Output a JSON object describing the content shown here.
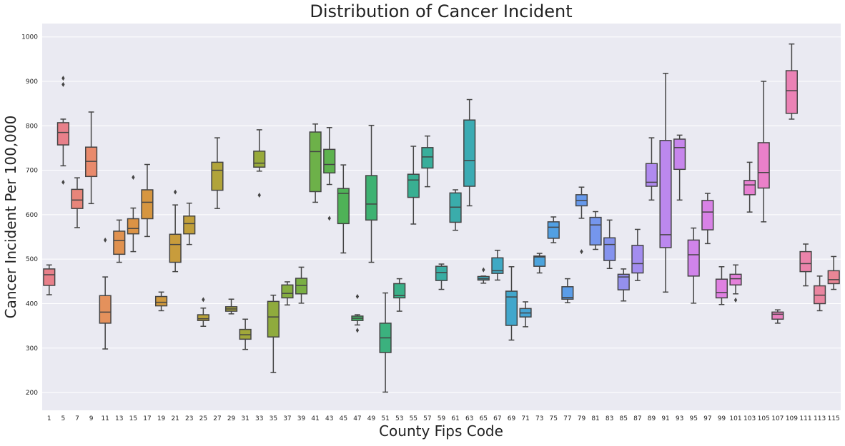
{
  "chart_data": {
    "type": "box",
    "title": "Distribution of Cancer Incident",
    "xlabel": "County Fips Code",
    "ylabel": "Cancer Incident Per 100,000",
    "ylim": [
      160,
      1030
    ],
    "yticks": [
      200,
      300,
      400,
      500,
      600,
      700,
      800,
      900,
      1000
    ],
    "grid": true,
    "categories": [
      "1",
      "5",
      "7",
      "9",
      "11",
      "13",
      "15",
      "17",
      "19",
      "21",
      "23",
      "25",
      "27",
      "29",
      "31",
      "33",
      "35",
      "37",
      "39",
      "41",
      "43",
      "45",
      "47",
      "49",
      "51",
      "53",
      "55",
      "57",
      "59",
      "61",
      "63",
      "65",
      "67",
      "69",
      "71",
      "73",
      "75",
      "77",
      "79",
      "81",
      "83",
      "85",
      "87",
      "89",
      "91",
      "93",
      "95",
      "97",
      "99",
      "101",
      "103",
      "105",
      "107",
      "109",
      "111",
      "113",
      "115"
    ],
    "boxes": [
      {
        "q1": 441,
        "median": 465,
        "q3": 478,
        "whisker_low": 420,
        "whisker_high": 487,
        "outliers": [],
        "color": "#e8808a"
      },
      {
        "q1": 757,
        "median": 785,
        "q3": 807,
        "whisker_low": 710,
        "whisker_high": 815,
        "outliers": [
          907,
          893,
          673
        ],
        "color": "#e8808a"
      },
      {
        "q1": 614,
        "median": 633,
        "q3": 657,
        "whisker_low": 571,
        "whisker_high": 683,
        "outliers": [],
        "color": "#e8857a"
      },
      {
        "q1": 686,
        "median": 720,
        "q3": 752,
        "whisker_low": 625,
        "whisker_high": 831,
        "outliers": [],
        "color": "#e98a6c"
      },
      {
        "q1": 356,
        "median": 381,
        "q3": 418,
        "whisker_low": 298,
        "whisker_high": 460,
        "outliers": [
          543
        ],
        "color": "#e4915c"
      },
      {
        "q1": 511,
        "median": 542,
        "q3": 563,
        "whisker_low": 493,
        "whisker_high": 588,
        "outliers": [],
        "color": "#e0914f"
      },
      {
        "q1": 557,
        "median": 569,
        "q3": 591,
        "whisker_low": 517,
        "whisker_high": 615,
        "outliers": [
          684
        ],
        "color": "#dc9345"
      },
      {
        "q1": 591,
        "median": 628,
        "q3": 656,
        "whisker_low": 551,
        "whisker_high": 713,
        "outliers": [],
        "color": "#d69640"
      },
      {
        "q1": 395,
        "median": 403,
        "q3": 416,
        "whisker_low": 384,
        "whisker_high": 426,
        "outliers": [],
        "color": "#cf993e"
      },
      {
        "q1": 493,
        "median": 533,
        "q3": 556,
        "whisker_low": 472,
        "whisker_high": 622,
        "outliers": [
          651
        ],
        "color": "#c89c3c"
      },
      {
        "q1": 557,
        "median": 580,
        "q3": 597,
        "whisker_low": 533,
        "whisker_high": 626,
        "outliers": [],
        "color": "#c19f3a"
      },
      {
        "q1": 362,
        "median": 366,
        "q3": 375,
        "whisker_low": 349,
        "whisker_high": 390,
        "outliers": [
          409
        ],
        "color": "#b9a23a"
      },
      {
        "q1": 655,
        "median": 700,
        "q3": 718,
        "whisker_low": 614,
        "whisker_high": 773,
        "outliers": [],
        "color": "#b1a43a"
      },
      {
        "q1": 383,
        "median": 388,
        "q3": 393,
        "whisker_low": 377,
        "whisker_high": 410,
        "outliers": [],
        "color": "#aaa63a"
      },
      {
        "q1": 320,
        "median": 330,
        "q3": 342,
        "whisker_low": 297,
        "whisker_high": 365,
        "outliers": [],
        "color": "#a1a83a"
      },
      {
        "q1": 707,
        "median": 716,
        "q3": 743,
        "whisker_low": 698,
        "whisker_high": 791,
        "outliers": [
          644
        ],
        "color": "#98aa3b"
      },
      {
        "q1": 325,
        "median": 370,
        "q3": 405,
        "whisker_low": 245,
        "whisker_high": 419,
        "outliers": [],
        "color": "#8fab3d"
      },
      {
        "q1": 413,
        "median": 423,
        "q3": 442,
        "whisker_low": 397,
        "whisker_high": 449,
        "outliers": [],
        "color": "#85ad40"
      },
      {
        "q1": 422,
        "median": 441,
        "q3": 457,
        "whisker_low": 401,
        "whisker_high": 482,
        "outliers": [],
        "color": "#7aaf44"
      },
      {
        "q1": 652,
        "median": 742,
        "q3": 786,
        "whisker_low": 628,
        "whisker_high": 804,
        "outliers": [],
        "color": "#6db149"
      },
      {
        "q1": 694,
        "median": 713,
        "q3": 747,
        "whisker_low": 668,
        "whisker_high": 796,
        "outliers": [
          592
        ],
        "color": "#5db24e"
      },
      {
        "q1": 580,
        "median": 648,
        "q3": 659,
        "whisker_low": 514,
        "whisker_high": 712,
        "outliers": [],
        "color": "#4fb257"
      },
      {
        "q1": 362,
        "median": 367,
        "q3": 372,
        "whisker_low": 352,
        "whisker_high": 375,
        "outliers": [
          416,
          340
        ],
        "color": "#43b265"
      },
      {
        "q1": 588,
        "median": 624,
        "q3": 688,
        "whisker_low": 493,
        "whisker_high": 801,
        "outliers": [],
        "color": "#3eb272"
      },
      {
        "q1": 290,
        "median": 323,
        "q3": 356,
        "whisker_low": 201,
        "whisker_high": 424,
        "outliers": [],
        "color": "#3bb17e"
      },
      {
        "q1": 413,
        "median": 418,
        "q3": 445,
        "whisker_low": 383,
        "whisker_high": 456,
        "outliers": [],
        "color": "#3ab088"
      },
      {
        "q1": 639,
        "median": 678,
        "q3": 691,
        "whisker_low": 579,
        "whisker_high": 754,
        "outliers": [],
        "color": "#39af92"
      },
      {
        "q1": 705,
        "median": 730,
        "q3": 751,
        "whisker_low": 663,
        "whisker_high": 777,
        "outliers": [],
        "color": "#38ae9b"
      },
      {
        "q1": 452,
        "median": 470,
        "q3": 484,
        "whisker_low": 432,
        "whisker_high": 489,
        "outliers": [],
        "color": "#39ada3"
      },
      {
        "q1": 583,
        "median": 617,
        "q3": 649,
        "whisker_low": 565,
        "whisker_high": 656,
        "outliers": [],
        "color": "#3aacab"
      },
      {
        "q1": 664,
        "median": 722,
        "q3": 813,
        "whisker_low": 620,
        "whisker_high": 859,
        "outliers": [],
        "color": "#3babb3"
      },
      {
        "q1": 453,
        "median": 456,
        "q3": 461,
        "whisker_low": 446,
        "whisker_high": 462,
        "outliers": [
          476
        ],
        "color": "#3daabb"
      },
      {
        "q1": 468,
        "median": 474,
        "q3": 503,
        "whisker_low": 453,
        "whisker_high": 520,
        "outliers": [],
        "color": "#3fa9c4"
      },
      {
        "q1": 351,
        "median": 415,
        "q3": 428,
        "whisker_low": 318,
        "whisker_high": 483,
        "outliers": [],
        "color": "#42a7cc"
      },
      {
        "q1": 370,
        "median": 379,
        "q3": 389,
        "whisker_low": 348,
        "whisker_high": 404,
        "outliers": [],
        "color": "#46a5d4"
      },
      {
        "q1": 484,
        "median": 505,
        "q3": 507,
        "whisker_low": 469,
        "whisker_high": 513,
        "outliers": [],
        "color": "#4ba3dc"
      },
      {
        "q1": 547,
        "median": 572,
        "q3": 584,
        "whisker_low": 537,
        "whisker_high": 595,
        "outliers": [],
        "color": "#52a0e3"
      },
      {
        "q1": 410,
        "median": 414,
        "q3": 438,
        "whisker_low": 402,
        "whisker_high": 456,
        "outliers": [],
        "color": "#5b9de8"
      },
      {
        "q1": 620,
        "median": 632,
        "q3": 645,
        "whisker_low": 592,
        "whisker_high": 662,
        "outliers": [
          517
        ],
        "color": "#6699ec"
      },
      {
        "q1": 532,
        "median": 577,
        "q3": 594,
        "whisker_low": 522,
        "whisker_high": 607,
        "outliers": [],
        "color": "#7596ed"
      },
      {
        "q1": 497,
        "median": 533,
        "q3": 548,
        "whisker_low": 479,
        "whisker_high": 588,
        "outliers": [],
        "color": "#8593ee"
      },
      {
        "q1": 431,
        "median": 460,
        "q3": 466,
        "whisker_low": 406,
        "whisker_high": 478,
        "outliers": [],
        "color": "#9490ee"
      },
      {
        "q1": 469,
        "median": 490,
        "q3": 531,
        "whisker_low": 452,
        "whisker_high": 567,
        "outliers": [],
        "color": "#a38def"
      },
      {
        "q1": 664,
        "median": 673,
        "q3": 715,
        "whisker_low": 633,
        "whisker_high": 773,
        "outliers": [],
        "color": "#b08aef"
      },
      {
        "q1": 526,
        "median": 555,
        "q3": 767,
        "whisker_low": 426,
        "whisker_high": 918,
        "outliers": [],
        "color": "#bc88ee"
      },
      {
        "q1": 702,
        "median": 751,
        "q3": 770,
        "whisker_low": 633,
        "whisker_high": 779,
        "outliers": [],
        "color": "#c786ec"
      },
      {
        "q1": 462,
        "median": 510,
        "q3": 543,
        "whisker_low": 401,
        "whisker_high": 570,
        "outliers": [],
        "color": "#d084ea"
      },
      {
        "q1": 566,
        "median": 606,
        "q3": 632,
        "whisker_low": 535,
        "whisker_high": 648,
        "outliers": [],
        "color": "#d882e6"
      },
      {
        "q1": 413,
        "median": 425,
        "q3": 455,
        "whisker_low": 398,
        "whisker_high": 483,
        "outliers": [],
        "color": "#df81e1"
      },
      {
        "q1": 442,
        "median": 456,
        "q3": 466,
        "whisker_low": 422,
        "whisker_high": 487,
        "outliers": [
          408
        ],
        "color": "#e480da"
      },
      {
        "q1": 645,
        "median": 667,
        "q3": 677,
        "whisker_low": 606,
        "whisker_high": 718,
        "outliers": [],
        "color": "#e880d2"
      },
      {
        "q1": 660,
        "median": 695,
        "q3": 762,
        "whisker_low": 584,
        "whisker_high": 900,
        "outliers": [],
        "color": "#ea80c9"
      },
      {
        "q1": 365,
        "median": 376,
        "q3": 381,
        "whisker_low": 356,
        "whisker_high": 386,
        "outliers": [],
        "color": "#eb81bf"
      },
      {
        "q1": 828,
        "median": 879,
        "q3": 924,
        "whisker_low": 815,
        "whisker_high": 984,
        "outliers": [],
        "color": "#eb82b5"
      },
      {
        "q1": 472,
        "median": 490,
        "q3": 517,
        "whisker_low": 440,
        "whisker_high": 534,
        "outliers": [],
        "color": "#eb83aa"
      },
      {
        "q1": 400,
        "median": 419,
        "q3": 440,
        "whisker_low": 384,
        "whisker_high": 462,
        "outliers": [],
        "color": "#ea85a0"
      },
      {
        "q1": 445,
        "median": 454,
        "q3": 474,
        "whisker_low": 432,
        "whisker_high": 506,
        "outliers": [],
        "color": "#e98696"
      }
    ]
  }
}
